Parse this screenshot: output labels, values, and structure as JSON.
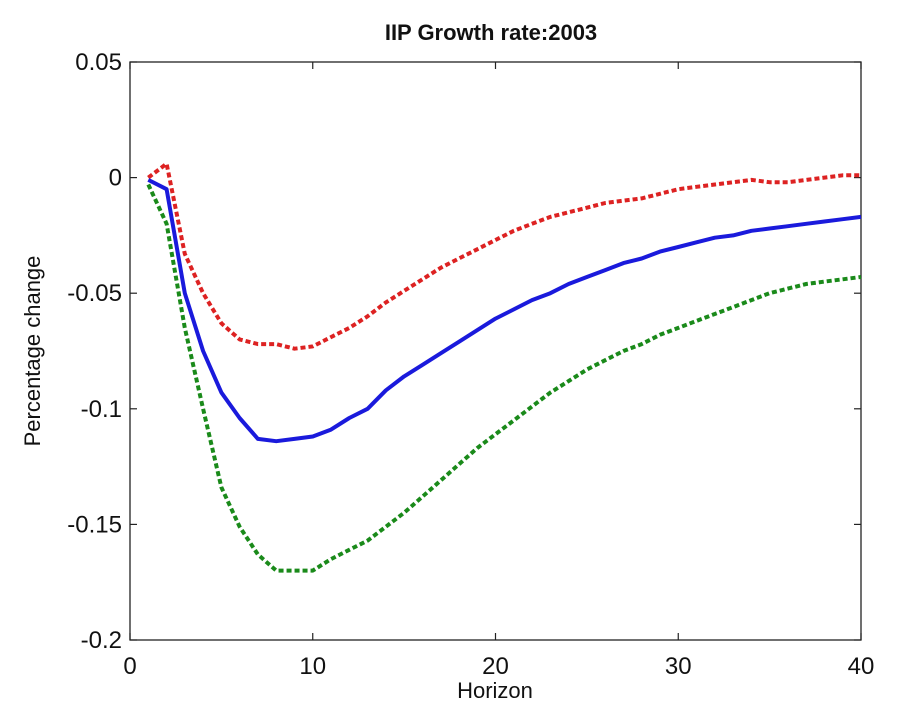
{
  "chart_data": {
    "type": "line",
    "title": "IIP Growth rate:2003",
    "xlabel": "Horizon",
    "ylabel": "Percentage change",
    "xlim": [
      0,
      40
    ],
    "ylim": [
      -0.2,
      0.05
    ],
    "xticks": [
      0,
      10,
      20,
      30,
      40
    ],
    "xtick_labels": [
      "0",
      "10",
      "20",
      "30",
      "40"
    ],
    "yticks": [
      -0.2,
      -0.15,
      -0.1,
      -0.05,
      0,
      0.05
    ],
    "ytick_labels": [
      "-0.2",
      "-0.15",
      "-0.1",
      "-0.05",
      "0",
      "0.05"
    ],
    "grid": false,
    "legend": "none",
    "x": [
      1,
      2,
      3,
      4,
      5,
      6,
      7,
      8,
      9,
      10,
      11,
      12,
      13,
      14,
      15,
      16,
      17,
      18,
      19,
      20,
      21,
      22,
      23,
      24,
      25,
      26,
      27,
      28,
      29,
      30,
      31,
      32,
      33,
      34,
      35,
      36,
      37,
      38,
      39,
      40
    ],
    "series": [
      {
        "color": "#dd2222",
        "dash": "dotted",
        "values": [
          0,
          0.006,
          -0.033,
          -0.05,
          -0.063,
          -0.07,
          -0.072,
          -0.072,
          -0.074,
          -0.073,
          -0.069,
          -0.065,
          -0.06,
          -0.054,
          -0.049,
          -0.044,
          -0.039,
          -0.035,
          -0.031,
          -0.027,
          -0.023,
          -0.02,
          -0.017,
          -0.015,
          -0.013,
          -0.011,
          -0.01,
          -0.009,
          -0.007,
          -0.005,
          -0.004,
          -0.003,
          -0.002,
          -0.001,
          -0.002,
          -0.002,
          -0.001,
          0.0,
          0.001,
          0.001
        ]
      },
      {
        "color": "#1a1adc",
        "dash": "solid",
        "values": [
          -0.001,
          -0.005,
          -0.05,
          -0.075,
          -0.093,
          -0.104,
          -0.113,
          -0.114,
          -0.113,
          -0.112,
          -0.109,
          -0.104,
          -0.1,
          -0.092,
          -0.086,
          -0.081,
          -0.076,
          -0.071,
          -0.066,
          -0.061,
          -0.057,
          -0.053,
          -0.05,
          -0.046,
          -0.043,
          -0.04,
          -0.037,
          -0.035,
          -0.032,
          -0.03,
          -0.028,
          -0.026,
          -0.025,
          -0.023,
          -0.022,
          -0.021,
          -0.02,
          -0.019,
          -0.018,
          -0.017
        ]
      },
      {
        "color": "#1a8a1a",
        "dash": "dotted",
        "values": [
          -0.003,
          -0.02,
          -0.065,
          -0.1,
          -0.134,
          -0.151,
          -0.163,
          -0.17,
          -0.17,
          -0.17,
          -0.165,
          -0.161,
          -0.157,
          -0.151,
          -0.145,
          -0.138,
          -0.131,
          -0.124,
          -0.117,
          -0.111,
          -0.105,
          -0.099,
          -0.093,
          -0.088,
          -0.083,
          -0.079,
          -0.075,
          -0.072,
          -0.068,
          -0.065,
          -0.062,
          -0.059,
          -0.056,
          -0.053,
          -0.05,
          -0.048,
          -0.046,
          -0.045,
          -0.044,
          -0.043
        ]
      }
    ]
  }
}
